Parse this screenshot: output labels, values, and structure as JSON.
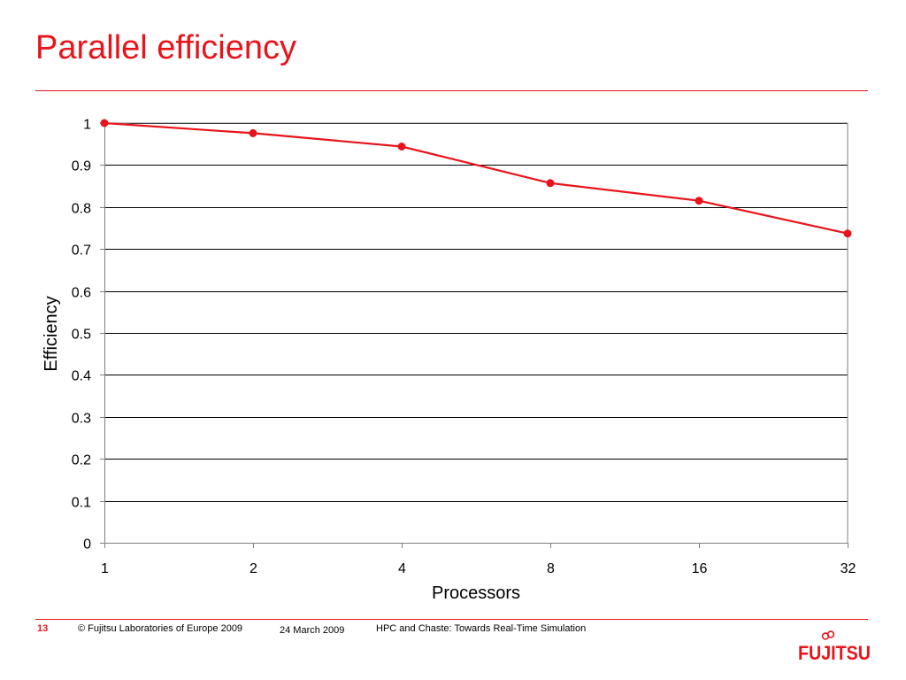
{
  "slide": {
    "title": "Parallel efficiency"
  },
  "footer": {
    "page_number": "13",
    "copyright": "© Fujitsu Laboratories of Europe 2009",
    "date": "24 March 2009",
    "talk_title": "HPC and Chaste: Towards Real-Time Simulation",
    "logo_text": "FUJITSU"
  },
  "colors": {
    "accent": "#e8141b",
    "series": "#e8141b",
    "grid": "#000000",
    "plot_border": "#808080"
  },
  "chart_data": {
    "type": "line",
    "title": "",
    "xlabel": "Processors",
    "ylabel": "Efficiency",
    "categories": [
      "1",
      "2",
      "4",
      "8",
      "16",
      "32"
    ],
    "x": [
      1,
      2,
      4,
      8,
      16,
      32
    ],
    "series": [
      {
        "values": [
          1.0,
          0.976,
          0.944,
          0.857,
          0.815,
          0.737
        ]
      }
    ],
    "y_ticks": [
      "0",
      "0.1",
      "0.2",
      "0.3",
      "0.4",
      "0.5",
      "0.6",
      "0.7",
      "0.8",
      "0.9",
      "1"
    ],
    "ylim": [
      0,
      1
    ],
    "x_scale": "log2",
    "grid": "horizontal",
    "legend": "none"
  }
}
